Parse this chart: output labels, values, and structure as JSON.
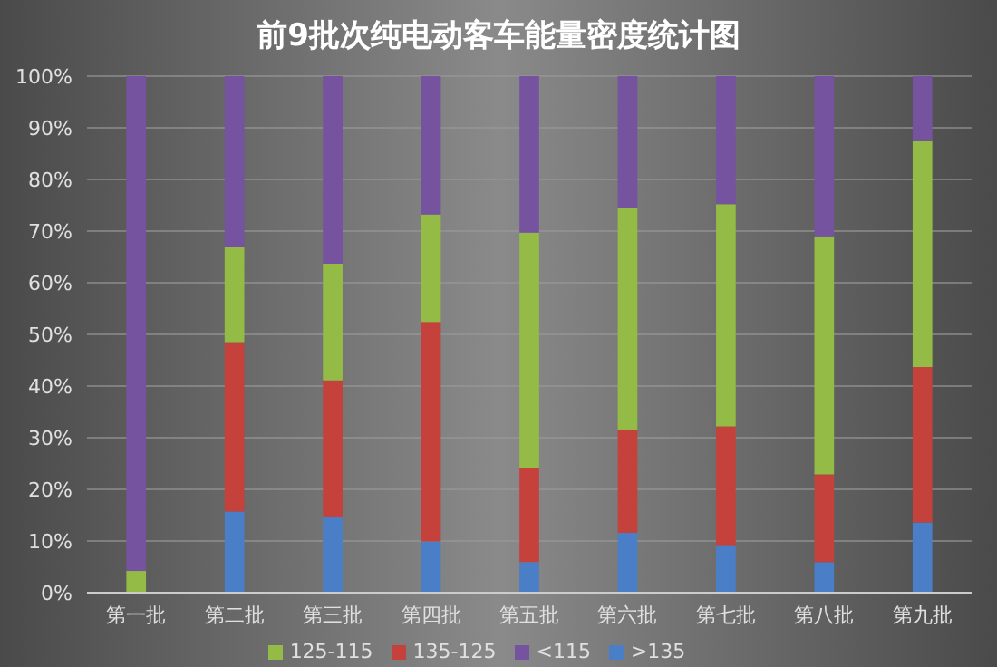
{
  "chart_data": {
    "type": "bar",
    "title": "前9批次纯电动客车能量密度统计图",
    "stacked": true,
    "categories": [
      "第一批",
      "第二批",
      "第三批",
      "第四批",
      "第五批",
      "第六批",
      "第七批",
      "第八批",
      "第九批"
    ],
    "series": [
      {
        "name": ">135",
        "color": "#4a7fc8",
        "values": [
          0,
          15.7,
          14.6,
          9.9,
          5.9,
          11.6,
          9.2,
          5.9,
          13.6
        ]
      },
      {
        "name": "135-125",
        "color": "#c4423b",
        "values": [
          0,
          32.8,
          26.5,
          42.5,
          18.3,
          20,
          23,
          17,
          30.1
        ]
      },
      {
        "name": "125-115",
        "color": "#94bb45",
        "values": [
          4.2,
          18.4,
          22.6,
          20.8,
          45.5,
          42.9,
          43,
          46.1,
          43.7
        ]
      },
      {
        "name": "<115",
        "color": "#76539f",
        "values": [
          95.8,
          33.1,
          36.3,
          26.8,
          30.3,
          25.5,
          24.8,
          31,
          12.6
        ]
      }
    ],
    "ylim": [
      0,
      100
    ],
    "yticks": [
      {
        "value": 0,
        "label": "0%"
      },
      {
        "value": 10,
        "label": "10%"
      },
      {
        "value": 20,
        "label": "20%"
      },
      {
        "value": 30,
        "label": "30%"
      },
      {
        "value": 40,
        "label": "40%"
      },
      {
        "value": 50,
        "label": "50%"
      },
      {
        "value": 60,
        "label": "60%"
      },
      {
        "value": 70,
        "label": "70%"
      },
      {
        "value": 80,
        "label": "80%"
      },
      {
        "value": 90,
        "label": "90%"
      },
      {
        "value": 100,
        "label": "100%"
      }
    ],
    "grid": "y",
    "legend": "bottom"
  }
}
